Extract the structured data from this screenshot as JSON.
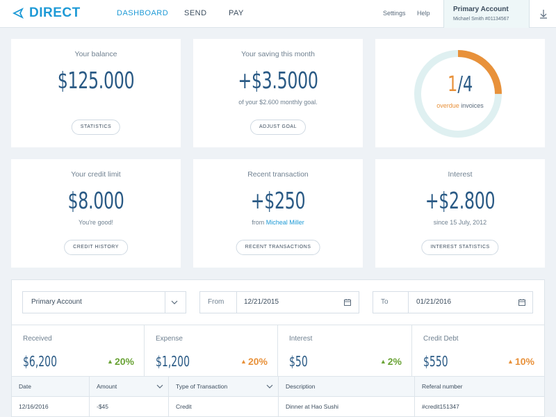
{
  "brand": {
    "name": "DIRECT"
  },
  "nav": [
    {
      "label": "DASHBOARD",
      "active": true
    },
    {
      "label": "SEND",
      "active": false
    },
    {
      "label": "PAY",
      "active": false
    }
  ],
  "top_links": {
    "settings": "Settings",
    "help": "Help"
  },
  "account": {
    "title": "Primary Account",
    "subtitle": "Michael Smith #01134567"
  },
  "cards": {
    "balance": {
      "label": "Your balance",
      "value": "$125.000",
      "button": "STATISTICS"
    },
    "saving": {
      "label": "Your saving this month",
      "value": "+$3.5000",
      "sub": "of your $2.600 monthly goal.",
      "button": "ADJUST GOAL"
    },
    "invoices": {
      "numerator": "1",
      "denominator": "/4",
      "overdue": "overdue",
      "rest": " invoices",
      "fraction": 0.25
    },
    "credit": {
      "label": "Your credit limit",
      "value": "$8.000",
      "sub": "You're good!",
      "button": "CREDIT HISTORY"
    },
    "transaction": {
      "label": "Recent transaction",
      "value": "+$250",
      "sub_prefix": "from ",
      "sub_name": "Micheal Miller",
      "button": "RECENT TRANSACTIONS"
    },
    "interest": {
      "label": "Interest",
      "value": "+$2.800",
      "sub": "since 15 July, 2012",
      "button": "INTEREST STATISTICS"
    }
  },
  "filters": {
    "account_select": "Primary Account",
    "from_label": "From",
    "from_value": "12/21/2015",
    "to_label": "To",
    "to_value": "01/21/2016"
  },
  "stats": [
    {
      "label": "Received",
      "value": "$6,200",
      "change": "20%",
      "trend": "up",
      "color": "#6aa336"
    },
    {
      "label": "Expense",
      "value": "$1,200",
      "change": "20%",
      "trend": "up",
      "color": "#e8913a"
    },
    {
      "label": "Interest",
      "value": "$50",
      "change": "2%",
      "trend": "up",
      "color": "#6aa336"
    },
    {
      "label": "Credit Debt",
      "value": "$550",
      "change": "10%",
      "trend": "up",
      "color": "#e8913a"
    }
  ],
  "table": {
    "columns": [
      "Date",
      "Amount",
      "Type of Transaction",
      "Description",
      "Referal number"
    ],
    "rows": [
      [
        "12/16/2016",
        "-$45",
        "Credit",
        "Dinner at Hao Sushi",
        "#credit151347"
      ]
    ]
  },
  "colors": {
    "accent": "#1e9ad6",
    "value": "#2a5a85",
    "orange": "#e8913a",
    "green": "#6aa336",
    "ring_track": "#dff0f1"
  }
}
